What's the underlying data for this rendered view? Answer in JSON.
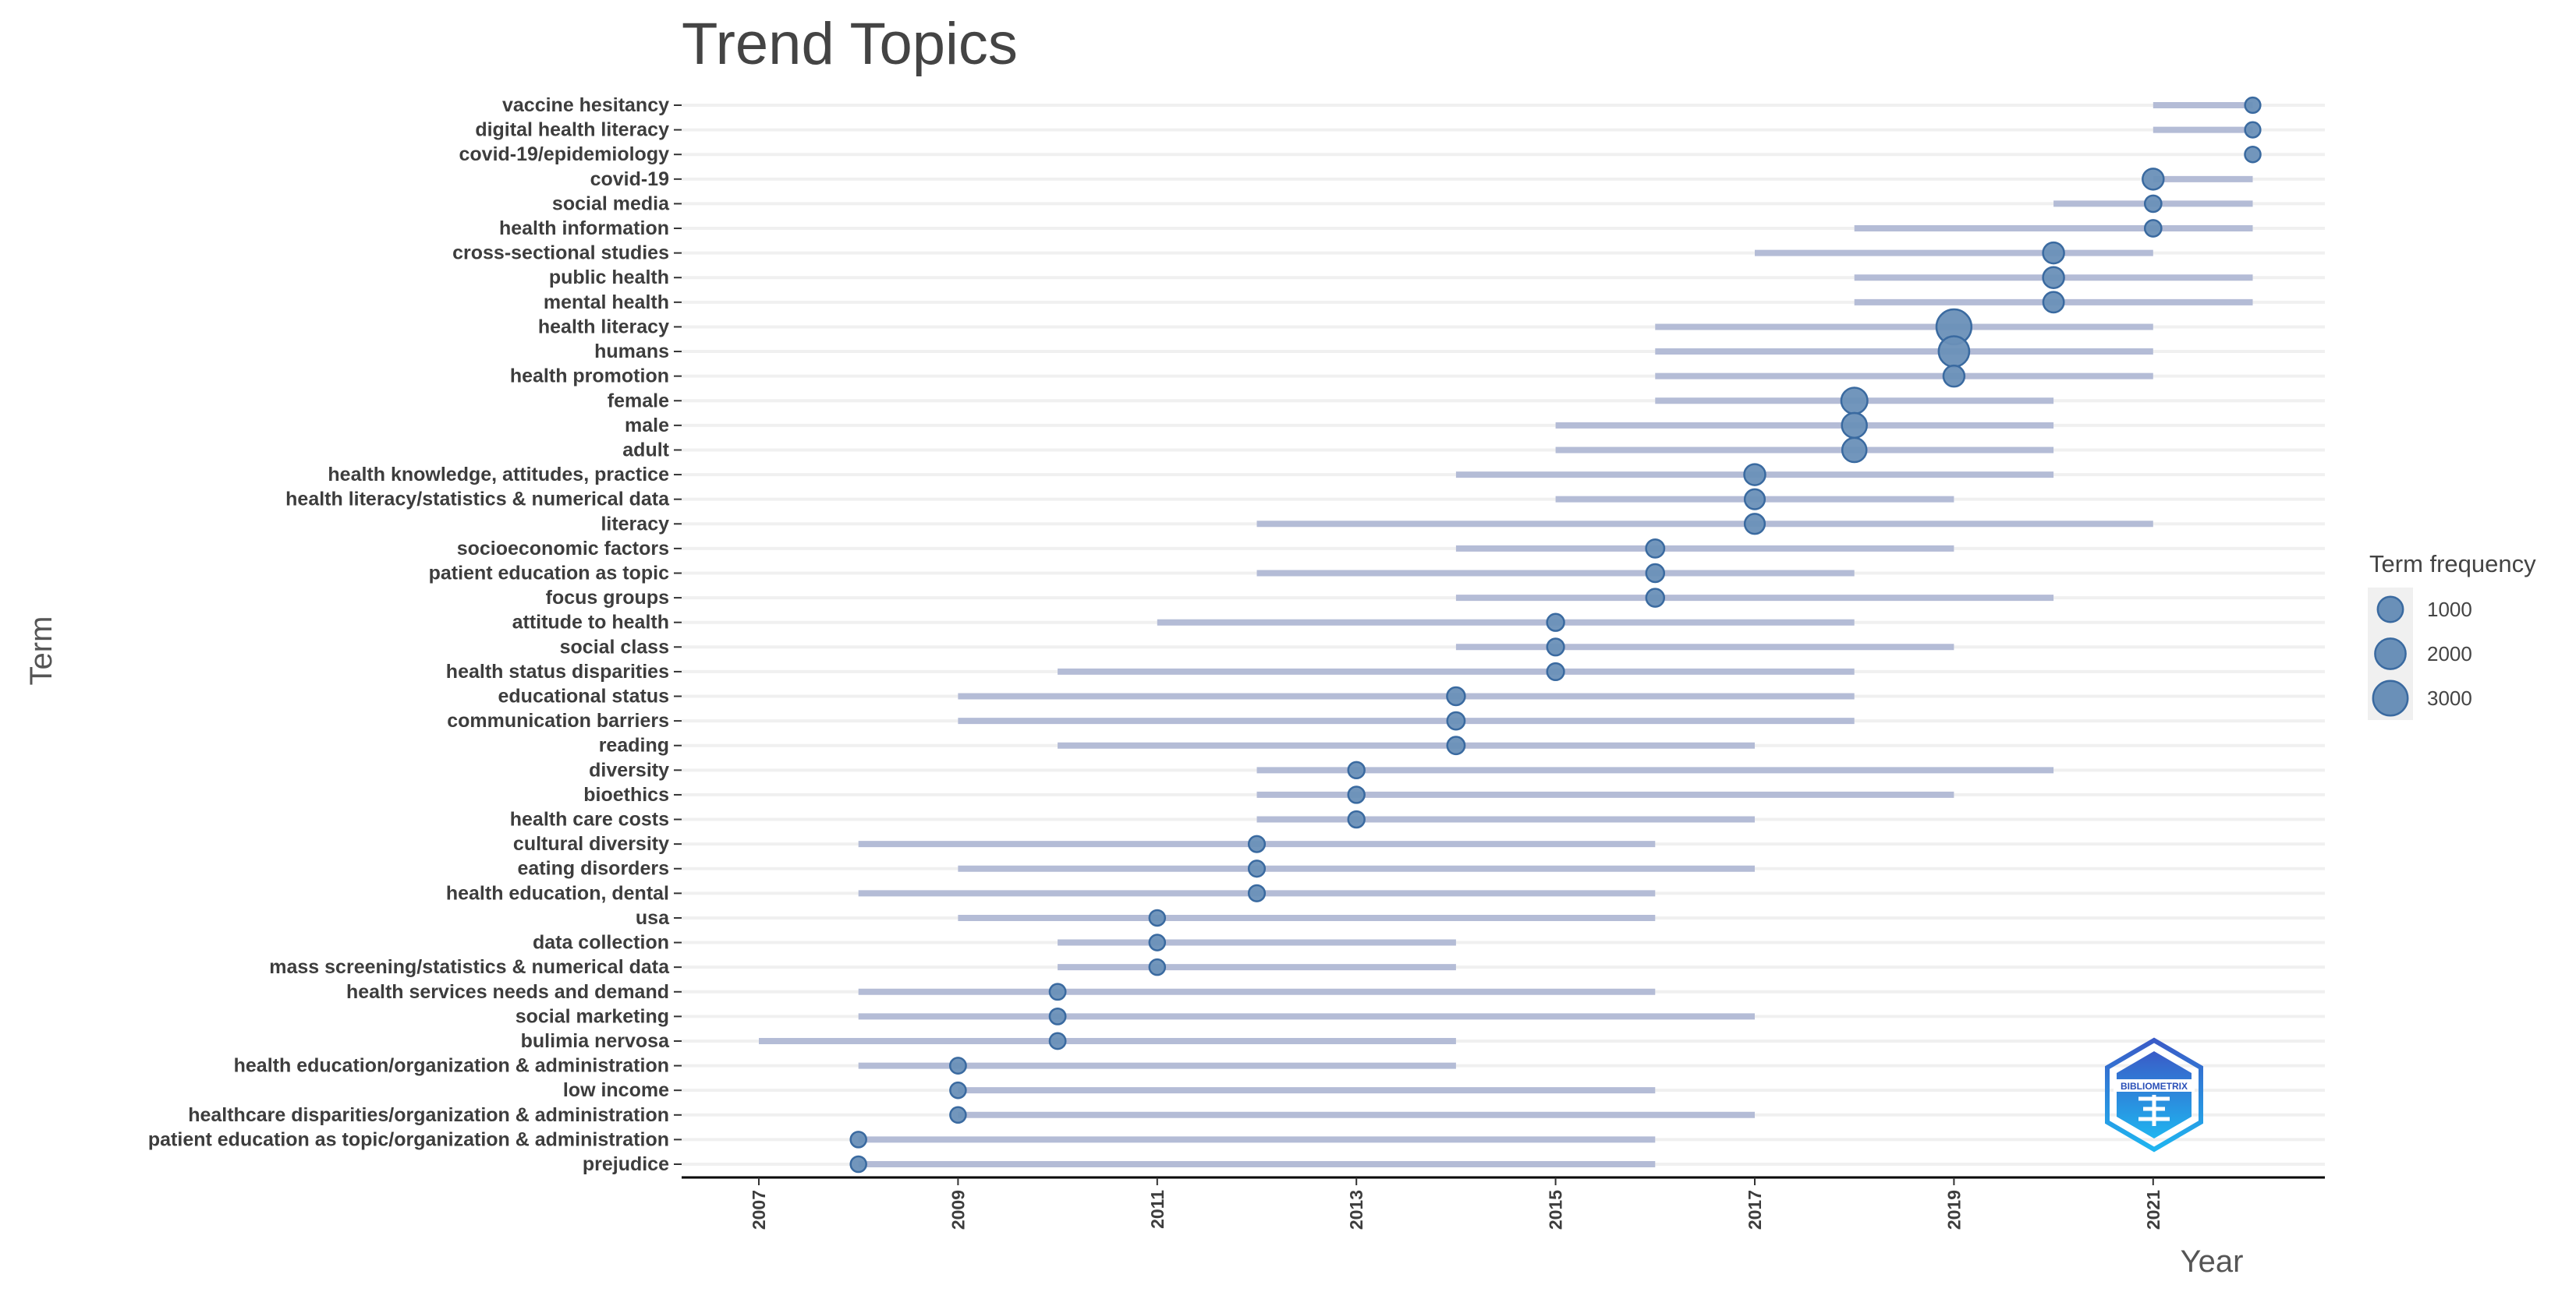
{
  "chart_data": {
    "type": "scatter",
    "title": "Trend Topics",
    "xlabel": "Year",
    "ylabel": "Term",
    "xlim": [
      2007,
      2022
    ],
    "x_ticks": [
      "2007",
      "2009",
      "2011",
      "2013",
      "2015",
      "2017",
      "2019",
      "2021"
    ],
    "grid": "horizontal",
    "legend": {
      "title": "Term frequency",
      "placement": "right",
      "entries": [
        {
          "label": "1000",
          "value": 1000
        },
        {
          "label": "2000",
          "value": 2000
        },
        {
          "label": "3000",
          "value": 3000
        }
      ]
    },
    "colors": {
      "point_fill": "#6a90b8",
      "point_stroke": "#3a6aa0",
      "range_line": "#b4bcd6",
      "grid": "#f0f0f0"
    },
    "terms": [
      {
        "term": "vaccine hesitancy",
        "start": 2021,
        "peak": 2022,
        "end": 2022,
        "freq": 50
      },
      {
        "term": "digital health literacy",
        "start": 2021,
        "peak": 2022,
        "end": 2022,
        "freq": 50
      },
      {
        "term": "covid-19/epidemiology",
        "start": 2022,
        "peak": 2022,
        "end": 2022,
        "freq": 60
      },
      {
        "term": "covid-19",
        "start": 2021,
        "peak": 2021,
        "end": 2022,
        "freq": 450
      },
      {
        "term": "social media",
        "start": 2020,
        "peak": 2021,
        "end": 2022,
        "freq": 100
      },
      {
        "term": "health information",
        "start": 2018,
        "peak": 2021,
        "end": 2022,
        "freq": 100
      },
      {
        "term": "cross-sectional studies",
        "start": 2017,
        "peak": 2020,
        "end": 2021,
        "freq": 450
      },
      {
        "term": "public health",
        "start": 2018,
        "peak": 2020,
        "end": 2022,
        "freq": 450
      },
      {
        "term": "mental health",
        "start": 2018,
        "peak": 2020,
        "end": 2022,
        "freq": 400
      },
      {
        "term": "health literacy",
        "start": 2016,
        "peak": 2019,
        "end": 2021,
        "freq": 3100
      },
      {
        "term": "humans",
        "start": 2016,
        "peak": 2019,
        "end": 2021,
        "freq": 2000
      },
      {
        "term": "health promotion",
        "start": 2016,
        "peak": 2019,
        "end": 2021,
        "freq": 450
      },
      {
        "term": "female",
        "start": 2016,
        "peak": 2018,
        "end": 2020,
        "freq": 1150
      },
      {
        "term": "male",
        "start": 2015,
        "peak": 2018,
        "end": 2020,
        "freq": 950
      },
      {
        "term": "adult",
        "start": 2015,
        "peak": 2018,
        "end": 2020,
        "freq": 850
      },
      {
        "term": "health knowledge, attitudes, practice",
        "start": 2014,
        "peak": 2017,
        "end": 2020,
        "freq": 450
      },
      {
        "term": "health literacy/statistics & numerical data",
        "start": 2015,
        "peak": 2017,
        "end": 2019,
        "freq": 350
      },
      {
        "term": "literacy",
        "start": 2012,
        "peak": 2017,
        "end": 2021,
        "freq": 350
      },
      {
        "term": "socioeconomic factors",
        "start": 2014,
        "peak": 2016,
        "end": 2019,
        "freq": 200
      },
      {
        "term": "patient education as topic",
        "start": 2012,
        "peak": 2016,
        "end": 2018,
        "freq": 180
      },
      {
        "term": "focus groups",
        "start": 2014,
        "peak": 2016,
        "end": 2020,
        "freq": 180
      },
      {
        "term": "attitude to health",
        "start": 2011,
        "peak": 2015,
        "end": 2018,
        "freq": 130
      },
      {
        "term": "social class",
        "start": 2014,
        "peak": 2015,
        "end": 2019,
        "freq": 120
      },
      {
        "term": "health status disparities",
        "start": 2010,
        "peak": 2015,
        "end": 2018,
        "freq": 120
      },
      {
        "term": "educational status",
        "start": 2009,
        "peak": 2014,
        "end": 2018,
        "freq": 180
      },
      {
        "term": "communication barriers",
        "start": 2009,
        "peak": 2014,
        "end": 2018,
        "freq": 150
      },
      {
        "term": "reading",
        "start": 2010,
        "peak": 2014,
        "end": 2017,
        "freq": 150
      },
      {
        "term": "diversity",
        "start": 2012,
        "peak": 2013,
        "end": 2020,
        "freq": 90
      },
      {
        "term": "bioethics",
        "start": 2012,
        "peak": 2013,
        "end": 2019,
        "freq": 90
      },
      {
        "term": "health care costs",
        "start": 2012,
        "peak": 2013,
        "end": 2017,
        "freq": 90
      },
      {
        "term": "cultural diversity",
        "start": 2008,
        "peak": 2012,
        "end": 2016,
        "freq": 80
      },
      {
        "term": "eating disorders",
        "start": 2009,
        "peak": 2012,
        "end": 2017,
        "freq": 80
      },
      {
        "term": "health education, dental",
        "start": 2008,
        "peak": 2012,
        "end": 2016,
        "freq": 80
      },
      {
        "term": "usa",
        "start": 2009,
        "peak": 2011,
        "end": 2016,
        "freq": 60
      },
      {
        "term": "data collection",
        "start": 2010,
        "peak": 2011,
        "end": 2014,
        "freq": 60
      },
      {
        "term": "mass screening/statistics & numerical data",
        "start": 2010,
        "peak": 2011,
        "end": 2014,
        "freq": 60
      },
      {
        "term": "health services needs and demand",
        "start": 2008,
        "peak": 2010,
        "end": 2016,
        "freq": 70
      },
      {
        "term": "social marketing",
        "start": 2008,
        "peak": 2010,
        "end": 2017,
        "freq": 70
      },
      {
        "term": "bulimia nervosa",
        "start": 2007,
        "peak": 2010,
        "end": 2014,
        "freq": 70
      },
      {
        "term": "health education/organization & administration",
        "start": 2008,
        "peak": 2009,
        "end": 2014,
        "freq": 70
      },
      {
        "term": "low income",
        "start": 2009,
        "peak": 2009,
        "end": 2016,
        "freq": 60
      },
      {
        "term": "healthcare disparities/organization & administration",
        "start": 2009,
        "peak": 2009,
        "end": 2017,
        "freq": 60
      },
      {
        "term": "patient education as topic/organization & administration",
        "start": 2008,
        "peak": 2008,
        "end": 2016,
        "freq": 60
      },
      {
        "term": "prejudice",
        "start": 2008,
        "peak": 2008,
        "end": 2016,
        "freq": 60
      }
    ]
  },
  "logo": {
    "text": "BIBLIOMETRIX"
  }
}
